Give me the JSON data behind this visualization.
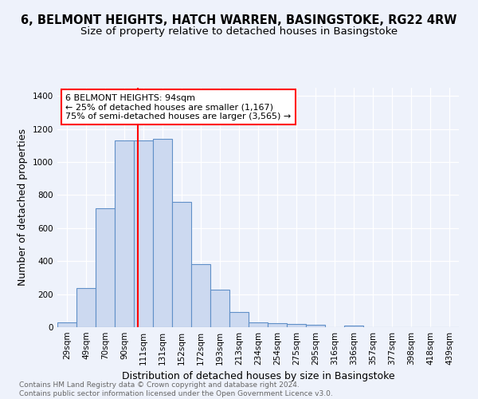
{
  "title": "6, BELMONT HEIGHTS, HATCH WARREN, BASINGSTOKE, RG22 4RW",
  "subtitle": "Size of property relative to detached houses in Basingstoke",
  "xlabel": "Distribution of detached houses by size in Basingstoke",
  "ylabel": "Number of detached properties",
  "footnote1": "Contains HM Land Registry data © Crown copyright and database right 2024.",
  "footnote2": "Contains public sector information licensed under the Open Government Licence v3.0.",
  "categories": [
    "29sqm",
    "49sqm",
    "70sqm",
    "90sqm",
    "111sqm",
    "131sqm",
    "152sqm",
    "172sqm",
    "193sqm",
    "213sqm",
    "234sqm",
    "254sqm",
    "275sqm",
    "295sqm",
    "316sqm",
    "336sqm",
    "357sqm",
    "377sqm",
    "398sqm",
    "418sqm",
    "439sqm"
  ],
  "values": [
    28,
    235,
    720,
    1130,
    1130,
    1140,
    760,
    380,
    225,
    93,
    28,
    22,
    20,
    15,
    0,
    12,
    0,
    0,
    0,
    0,
    0
  ],
  "bar_color": "#ccd9f0",
  "bar_edge_color": "#6090c8",
  "red_line_x": 3.7,
  "red_line_color": "red",
  "annotation_line1": "6 BELMONT HEIGHTS: 94sqm",
  "annotation_line2": "← 25% of detached houses are smaller (1,167)",
  "annotation_line3": "75% of semi-detached houses are larger (3,565) →",
  "ylim": [
    0,
    1450
  ],
  "yticks": [
    0,
    200,
    400,
    600,
    800,
    1000,
    1200,
    1400
  ],
  "background_color": "#eef2fb",
  "title_fontsize": 10.5,
  "subtitle_fontsize": 9.5,
  "footnote_fontsize": 6.5,
  "ylabel_fontsize": 9,
  "xlabel_fontsize": 9,
  "tick_fontsize": 7.5,
  "annot_fontsize": 8
}
